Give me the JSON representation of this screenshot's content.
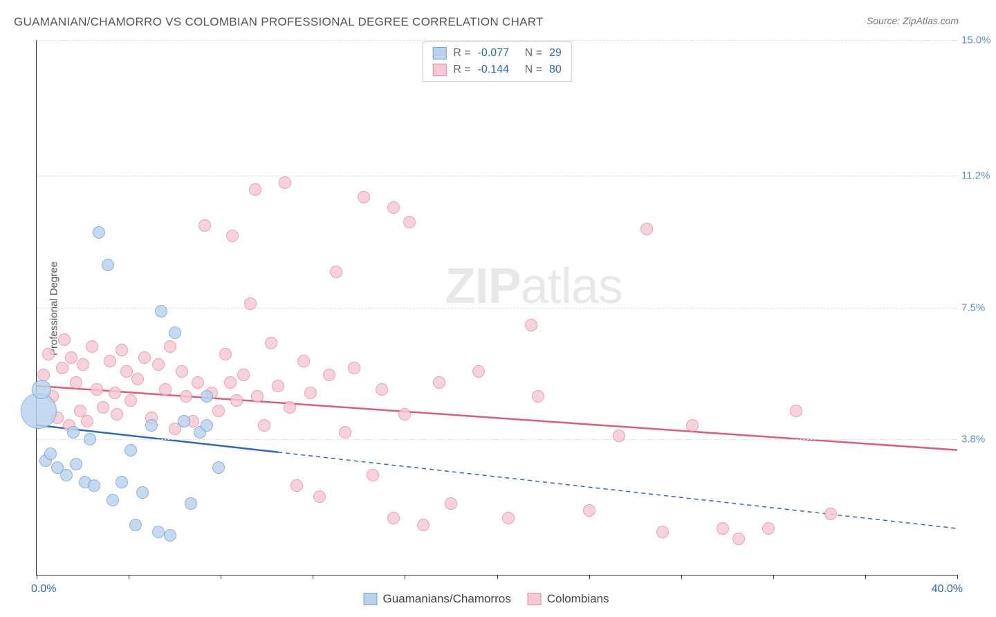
{
  "title": "GUAMANIAN/CHAMORRO VS COLOMBIAN PROFESSIONAL DEGREE CORRELATION CHART",
  "source": "Source: ZipAtlas.com",
  "y_axis_label": "Professional Degree",
  "watermark": {
    "bold": "ZIP",
    "rest": "atlas"
  },
  "chart": {
    "type": "scatter",
    "xlim": [
      0,
      40
    ],
    "ylim": [
      0,
      15
    ],
    "x_min_label": "0.0%",
    "x_max_label": "40.0%",
    "x_min_color": "#2968c8",
    "x_max_color": "#2968c8",
    "x_tick_positions": [
      0,
      4,
      8,
      12,
      16,
      20,
      24,
      28,
      32,
      36,
      40
    ],
    "y_ticks": [
      {
        "v": 3.8,
        "label": "3.8%",
        "color": "#5a8fd6"
      },
      {
        "v": 7.5,
        "label": "7.5%",
        "color": "#5a8fd6"
      },
      {
        "v": 11.2,
        "label": "11.2%",
        "color": "#5a8fd6"
      },
      {
        "v": 15.0,
        "label": "15.0%",
        "color": "#5a8fd6"
      }
    ],
    "grid_color": "#dddddd",
    "background_color": "#ffffff",
    "marker_radius": 9,
    "marker_stroke_width": 1.5,
    "series": [
      {
        "name": "Guamanians/Chamorros",
        "fill": "#b9d2ef",
        "stroke": "#6fa3dd",
        "R": "-0.077",
        "N": "29",
        "trend": {
          "y_left": 4.2,
          "y_right": 1.3,
          "solid_until_x": 10.5,
          "color": "#2968c8",
          "width": 2.5
        },
        "points": [
          [
            0.1,
            4.6,
            26
          ],
          [
            0.2,
            5.2,
            14
          ],
          [
            0.4,
            3.2
          ],
          [
            0.6,
            3.4
          ],
          [
            0.9,
            3.0
          ],
          [
            1.3,
            2.8
          ],
          [
            1.6,
            4.0
          ],
          [
            1.7,
            3.1
          ],
          [
            2.1,
            2.6
          ],
          [
            2.3,
            3.8
          ],
          [
            2.5,
            2.5
          ],
          [
            2.7,
            9.6
          ],
          [
            3.1,
            8.7
          ],
          [
            3.3,
            2.1
          ],
          [
            3.7,
            2.6
          ],
          [
            4.1,
            3.5
          ],
          [
            4.3,
            1.4
          ],
          [
            4.6,
            2.3
          ],
          [
            5.0,
            4.2
          ],
          [
            5.3,
            1.2
          ],
          [
            5.4,
            7.4
          ],
          [
            5.8,
            1.1
          ],
          [
            6.0,
            6.8
          ],
          [
            6.4,
            4.3
          ],
          [
            6.7,
            2.0
          ],
          [
            7.1,
            4.0
          ],
          [
            7.4,
            5.0
          ],
          [
            7.4,
            4.2
          ],
          [
            7.9,
            3.0
          ]
        ]
      },
      {
        "name": "Colombians",
        "fill": "#f7c9d4",
        "stroke": "#e98ba3",
        "R": "-0.144",
        "N": "80",
        "trend": {
          "y_left": 5.3,
          "y_right": 3.5,
          "solid_until_x": 40,
          "color": "#e05a7b",
          "width": 2.5
        },
        "points": [
          [
            0.3,
            5.6
          ],
          [
            0.5,
            6.2
          ],
          [
            0.7,
            5.0
          ],
          [
            0.9,
            4.4
          ],
          [
            1.1,
            5.8
          ],
          [
            1.2,
            6.6
          ],
          [
            1.4,
            4.2
          ],
          [
            1.7,
            5.4
          ],
          [
            1.5,
            6.1
          ],
          [
            1.9,
            4.6
          ],
          [
            2.0,
            5.9
          ],
          [
            2.2,
            4.3
          ],
          [
            2.4,
            6.4
          ],
          [
            2.6,
            5.2
          ],
          [
            2.9,
            4.7
          ],
          [
            3.2,
            6.0
          ],
          [
            3.4,
            5.1
          ],
          [
            3.5,
            4.5
          ],
          [
            3.7,
            6.3
          ],
          [
            3.9,
            5.7
          ],
          [
            4.1,
            4.9
          ],
          [
            4.4,
            5.5
          ],
          [
            4.7,
            6.1
          ],
          [
            5.0,
            4.4
          ],
          [
            5.3,
            5.9
          ],
          [
            5.6,
            5.2
          ],
          [
            5.8,
            6.4
          ],
          [
            6.0,
            4.1
          ],
          [
            6.3,
            5.7
          ],
          [
            6.5,
            5.0
          ],
          [
            6.8,
            4.3
          ],
          [
            7.0,
            5.4
          ],
          [
            7.3,
            9.8
          ],
          [
            7.6,
            5.1
          ],
          [
            7.9,
            4.6
          ],
          [
            8.2,
            6.2
          ],
          [
            8.4,
            5.4
          ],
          [
            8.7,
            4.9
          ],
          [
            8.5,
            9.5
          ],
          [
            9.0,
            5.6
          ],
          [
            9.3,
            7.6
          ],
          [
            9.6,
            5.0
          ],
          [
            9.9,
            4.2
          ],
          [
            9.5,
            10.8
          ],
          [
            10.2,
            6.5
          ],
          [
            10.5,
            5.3
          ],
          [
            10.8,
            11.0
          ],
          [
            11.0,
            4.7
          ],
          [
            11.3,
            2.5
          ],
          [
            11.6,
            6.0
          ],
          [
            11.9,
            5.1
          ],
          [
            12.3,
            2.2
          ],
          [
            12.7,
            5.6
          ],
          [
            13.0,
            8.5
          ],
          [
            13.4,
            4.0
          ],
          [
            13.8,
            5.8
          ],
          [
            14.2,
            10.6
          ],
          [
            14.6,
            2.8
          ],
          [
            15.0,
            5.2
          ],
          [
            15.5,
            1.6
          ],
          [
            15.5,
            10.3
          ],
          [
            16.0,
            4.5
          ],
          [
            16.2,
            9.9
          ],
          [
            16.8,
            1.4
          ],
          [
            17.5,
            5.4
          ],
          [
            18.0,
            2.0
          ],
          [
            19.2,
            5.7
          ],
          [
            20.5,
            1.6
          ],
          [
            21.5,
            7.0
          ],
          [
            21.8,
            5.0
          ],
          [
            24.0,
            1.8
          ],
          [
            25.3,
            3.9
          ],
          [
            26.5,
            9.7
          ],
          [
            27.2,
            1.2
          ],
          [
            28.5,
            4.2
          ],
          [
            29.8,
            1.3
          ],
          [
            30.5,
            1.0
          ],
          [
            31.8,
            1.3
          ],
          [
            33.0,
            4.6
          ],
          [
            34.5,
            1.7
          ]
        ]
      }
    ]
  },
  "stats_text": {
    "R_label": "R =",
    "N_label": "N =",
    "value_color": "#2968c8",
    "label_color": "#666"
  }
}
